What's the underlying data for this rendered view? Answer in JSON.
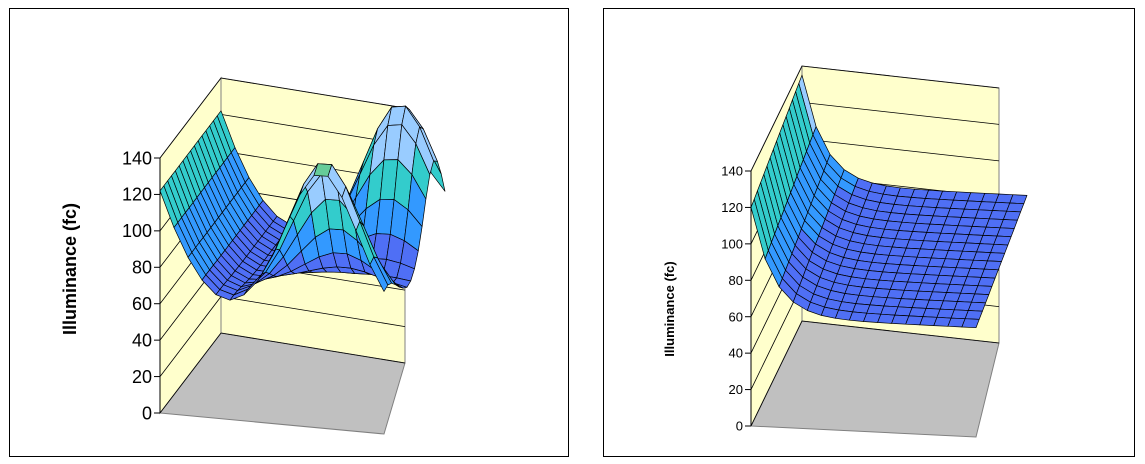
{
  "chart_data": [
    {
      "type": "surface3d",
      "ylabel": "Illuminance (fc)",
      "zlim": [
        0,
        140
      ],
      "zticks": [
        "0",
        "20",
        "40",
        "60",
        "80",
        "100",
        "120",
        "140"
      ],
      "grid": true,
      "legend": "none",
      "colors": {
        "wall": "#FFFFCC",
        "floor": "#C0C0C0",
        "band_0_20": "#0000FF",
        "band_20_40": "#1E3CFF",
        "band_40_60": "#3355FF",
        "band_60_80": "#4F6FF5",
        "band_80_100": "#3399FF",
        "band_100_120": "#33CCCC",
        "band_120_140": "#99CCFF",
        "band_140_plus": "#66CC99"
      },
      "grid_size": [
        16,
        16
      ],
      "peak_value": 143,
      "min_value": 63
    },
    {
      "type": "surface3d",
      "ylabel": "Illuminance (fc)",
      "zlim": [
        0,
        140
      ],
      "zticks": [
        "0",
        "20",
        "40",
        "60",
        "80",
        "100",
        "120",
        "140"
      ],
      "grid": true,
      "legend": "none",
      "colors": {
        "wall": "#FFFFCC",
        "floor": "#C0C0C0",
        "band_0_20": "#0000FF",
        "band_20_40": "#1E3CFF",
        "band_40_60": "#3355FF",
        "band_60_80": "#4F6FF5",
        "band_80_100": "#3399FF",
        "band_100_120": "#33CCCC",
        "band_120_140": "#99CCFF",
        "band_140_plus": "#66CC99"
      },
      "grid_size": [
        16,
        16
      ],
      "peak_value": 130,
      "min_value": 60
    }
  ]
}
